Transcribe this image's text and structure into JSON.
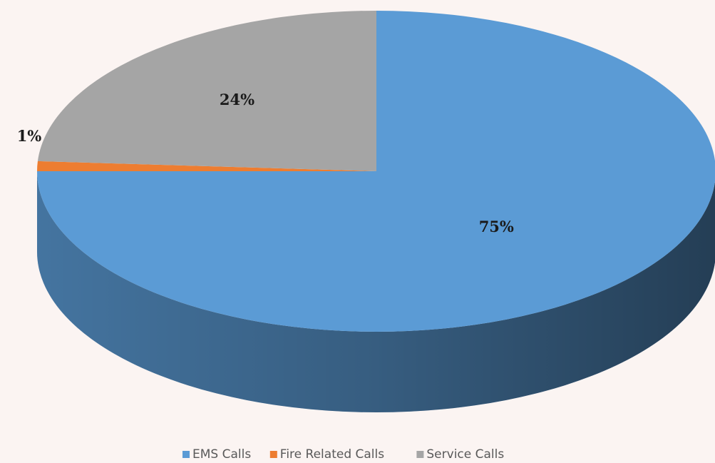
{
  "chart_data": {
    "type": "pie",
    "categories": [
      "EMS Calls",
      "Fire Related Calls",
      "Service Calls"
    ],
    "values": [
      75,
      1,
      24
    ],
    "value_labels": [
      "75%",
      "1%",
      "24%"
    ],
    "colors": [
      "#5b9bd5",
      "#ed7d31",
      "#a5a5a5"
    ],
    "legend": "bottom"
  }
}
